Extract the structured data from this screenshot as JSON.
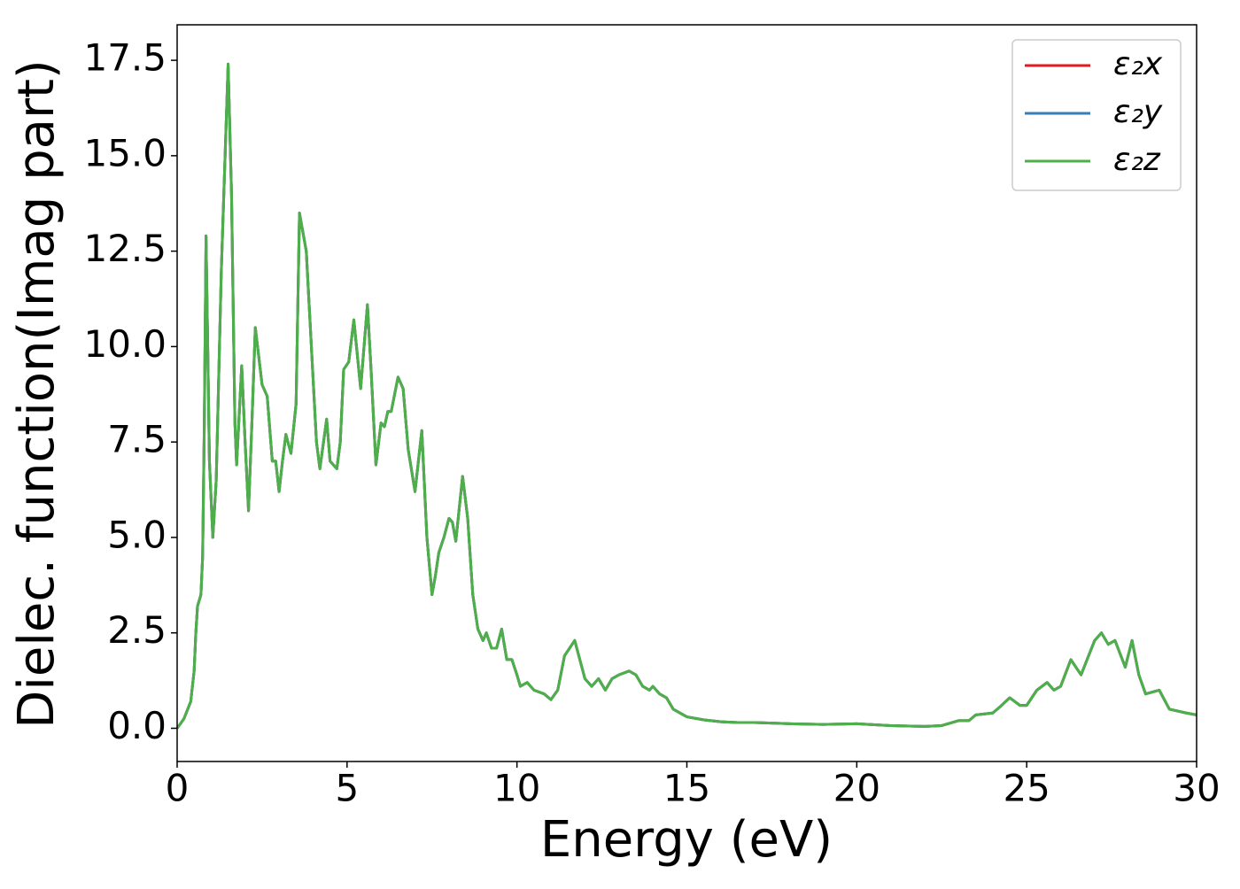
{
  "chart_data": {
    "type": "line",
    "xlabel": "Energy (eV)",
    "ylabel": "Dielec. function(Imag part)",
    "x": [
      0,
      0.2,
      0.4,
      0.5,
      0.55,
      0.6,
      0.7,
      0.75,
      0.8,
      0.85,
      0.9,
      0.95,
      1.05,
      1.15,
      1.3,
      1.5,
      1.6,
      1.7,
      1.75,
      1.9,
      2.0,
      2.1,
      2.2,
      2.3,
      2.5,
      2.65,
      2.8,
      2.9,
      3.0,
      3.1,
      3.2,
      3.35,
      3.5,
      3.6,
      3.8,
      3.95,
      4.1,
      4.2,
      4.4,
      4.5,
      4.7,
      4.8,
      4.9,
      5.05,
      5.2,
      5.4,
      5.6,
      5.7,
      5.85,
      6.0,
      6.1,
      6.2,
      6.3,
      6.5,
      6.65,
      6.8,
      7.0,
      7.2,
      7.35,
      7.5,
      7.6,
      7.7,
      7.85,
      8.0,
      8.1,
      8.2,
      8.4,
      8.55,
      8.7,
      8.85,
      9.0,
      9.1,
      9.25,
      9.4,
      9.55,
      9.7,
      9.85,
      10.0,
      10.1,
      10.3,
      10.5,
      10.8,
      11.0,
      11.2,
      11.4,
      11.7,
      12.0,
      12.2,
      12.4,
      12.6,
      12.8,
      13.0,
      13.3,
      13.5,
      13.7,
      13.9,
      14.0,
      14.2,
      14.4,
      14.6,
      15.0,
      15.5,
      16.0,
      16.5,
      17,
      18,
      19,
      20,
      21,
      22,
      22.5,
      23,
      23.3,
      23.5,
      24,
      24.2,
      24.5,
      24.8,
      25,
      25.3,
      25.6,
      25.8,
      26,
      26.3,
      26.6,
      27.0,
      27.2,
      27.4,
      27.6,
      27.9,
      28.1,
      28.3,
      28.5,
      28.9,
      29.2,
      29.7,
      30
    ],
    "series": [
      {
        "name": "ε₂x",
        "color": "#e41a1c",
        "values": [
          0,
          0.25,
          0.7,
          1.5,
          2.5,
          3.2,
          3.5,
          4.5,
          8,
          12.9,
          10,
          7,
          5.0,
          6.5,
          12,
          17.4,
          14,
          8,
          6.9,
          9.5,
          7.5,
          5.7,
          8,
          10.5,
          9.0,
          8.7,
          7.0,
          7.0,
          6.2,
          7.0,
          7.7,
          7.2,
          8.5,
          13.5,
          12.5,
          10,
          7.5,
          6.8,
          8.1,
          7.0,
          6.8,
          7.5,
          9.4,
          9.6,
          10.7,
          8.9,
          11.1,
          9.5,
          6.9,
          8.0,
          7.9,
          8.3,
          8.3,
          9.2,
          8.9,
          7.3,
          6.2,
          7.8,
          5.0,
          3.5,
          4.0,
          4.6,
          5.0,
          5.5,
          5.4,
          4.9,
          6.6,
          5.5,
          3.5,
          2.6,
          2.3,
          2.5,
          2.1,
          2.1,
          2.6,
          1.8,
          1.8,
          1.4,
          1.1,
          1.2,
          1.0,
          0.9,
          0.75,
          1.0,
          1.9,
          2.3,
          1.3,
          1.1,
          1.3,
          1.0,
          1.3,
          1.4,
          1.5,
          1.4,
          1.1,
          1.0,
          1.1,
          0.9,
          0.8,
          0.5,
          0.3,
          0.22,
          0.17,
          0.15,
          0.15,
          0.12,
          0.1,
          0.12,
          0.07,
          0.05,
          0.07,
          0.2,
          0.2,
          0.35,
          0.4,
          0.55,
          0.8,
          0.6,
          0.6,
          1.0,
          1.2,
          1.0,
          1.1,
          1.8,
          1.4,
          2.3,
          2.5,
          2.2,
          2.3,
          1.6,
          2.3,
          1.4,
          0.9,
          1.0,
          0.5,
          0.4,
          0.35
        ]
      },
      {
        "name": "ε₂y",
        "color": "#377eb8",
        "values": [
          0,
          0.25,
          0.7,
          1.5,
          2.5,
          3.2,
          3.5,
          4.5,
          8,
          12.9,
          10,
          7,
          5.0,
          6.5,
          12,
          17.4,
          14,
          8,
          6.9,
          9.5,
          7.5,
          5.7,
          8,
          10.5,
          9.0,
          8.7,
          7.0,
          7.0,
          6.2,
          7.0,
          7.7,
          7.2,
          8.5,
          13.5,
          12.5,
          10,
          7.5,
          6.8,
          8.1,
          7.0,
          6.8,
          7.5,
          9.4,
          9.6,
          10.7,
          8.9,
          11.1,
          9.5,
          6.9,
          8.0,
          7.9,
          8.3,
          8.3,
          9.2,
          8.9,
          7.3,
          6.2,
          7.8,
          5.0,
          3.5,
          4.0,
          4.6,
          5.0,
          5.5,
          5.4,
          4.9,
          6.6,
          5.5,
          3.5,
          2.6,
          2.3,
          2.5,
          2.1,
          2.1,
          2.6,
          1.8,
          1.8,
          1.4,
          1.1,
          1.2,
          1.0,
          0.9,
          0.75,
          1.0,
          1.9,
          2.3,
          1.3,
          1.1,
          1.3,
          1.0,
          1.3,
          1.4,
          1.5,
          1.4,
          1.1,
          1.0,
          1.1,
          0.9,
          0.8,
          0.5,
          0.3,
          0.22,
          0.17,
          0.15,
          0.15,
          0.12,
          0.1,
          0.12,
          0.07,
          0.05,
          0.07,
          0.2,
          0.2,
          0.35,
          0.4,
          0.55,
          0.8,
          0.6,
          0.6,
          1.0,
          1.2,
          1.0,
          1.1,
          1.8,
          1.4,
          2.3,
          2.5,
          2.2,
          2.3,
          1.6,
          2.3,
          1.4,
          0.9,
          1.0,
          0.5,
          0.4,
          0.35
        ]
      },
      {
        "name": "ε₂z",
        "color": "#4daf4a",
        "values": [
          0,
          0.25,
          0.7,
          1.5,
          2.5,
          3.2,
          3.5,
          4.5,
          8,
          12.9,
          10,
          7,
          5.0,
          6.5,
          12,
          17.4,
          14,
          8,
          6.9,
          9.5,
          7.5,
          5.7,
          8,
          10.5,
          9.0,
          8.7,
          7.0,
          7.0,
          6.2,
          7.0,
          7.7,
          7.2,
          8.5,
          13.5,
          12.5,
          10,
          7.5,
          6.8,
          8.1,
          7.0,
          6.8,
          7.5,
          9.4,
          9.6,
          10.7,
          8.9,
          11.1,
          9.5,
          6.9,
          8.0,
          7.9,
          8.3,
          8.3,
          9.2,
          8.9,
          7.3,
          6.2,
          7.8,
          5.0,
          3.5,
          4.0,
          4.6,
          5.0,
          5.5,
          5.4,
          4.9,
          6.6,
          5.5,
          3.5,
          2.6,
          2.3,
          2.5,
          2.1,
          2.1,
          2.6,
          1.8,
          1.8,
          1.4,
          1.1,
          1.2,
          1.0,
          0.9,
          0.75,
          1.0,
          1.9,
          2.3,
          1.3,
          1.1,
          1.3,
          1.0,
          1.3,
          1.4,
          1.5,
          1.4,
          1.1,
          1.0,
          1.1,
          0.9,
          0.8,
          0.5,
          0.3,
          0.22,
          0.17,
          0.15,
          0.15,
          0.12,
          0.1,
          0.12,
          0.07,
          0.05,
          0.07,
          0.2,
          0.2,
          0.35,
          0.4,
          0.55,
          0.8,
          0.6,
          0.6,
          1.0,
          1.2,
          1.0,
          1.1,
          1.8,
          1.4,
          2.3,
          2.5,
          2.2,
          2.3,
          1.6,
          2.3,
          1.4,
          0.9,
          1.0,
          0.5,
          0.4,
          0.35
        ]
      }
    ],
    "xlim": [
      0,
      30
    ],
    "xticks": [
      0,
      5,
      10,
      15,
      20,
      25,
      30
    ],
    "ylim": [
      -0.87,
      18.43
    ],
    "yticks": [
      {
        "value": 0,
        "label": "0.0"
      },
      2.5,
      {
        "value": 5,
        "label": "5.0"
      },
      7.5,
      {
        "value": 10,
        "label": "10.0"
      },
      12.5,
      {
        "value": 15,
        "label": "15.0"
      },
      17.5
    ],
    "legend": "upper right",
    "grid": false
  }
}
